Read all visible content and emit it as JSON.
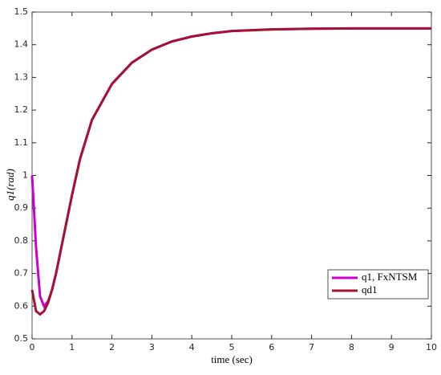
{
  "chart_data": {
    "type": "line",
    "x_label": "time (sec)",
    "y_label": "q1(rad)",
    "x": [
      0,
      0.1,
      0.2,
      0.3,
      0.4,
      0.5,
      0.6,
      0.8,
      1,
      1.2,
      1.5,
      2,
      2.5,
      3,
      3.5,
      4,
      4.5,
      5,
      6,
      7,
      8,
      9,
      10
    ],
    "series": [
      {
        "name": "q1, FxNTSM",
        "color": "#cc00cc",
        "values": [
          1.0,
          0.78,
          0.63,
          0.6,
          0.615,
          0.65,
          0.7,
          0.82,
          0.94,
          1.05,
          1.17,
          1.28,
          1.345,
          1.385,
          1.41,
          1.425,
          1.435,
          1.442,
          1.447,
          1.449,
          1.45,
          1.45,
          1.45
        ]
      },
      {
        "name": "qd1",
        "color": "#a2142f",
        "values": [
          0.65,
          0.585,
          0.575,
          0.585,
          0.61,
          0.65,
          0.7,
          0.82,
          0.94,
          1.05,
          1.17,
          1.28,
          1.345,
          1.385,
          1.41,
          1.425,
          1.435,
          1.442,
          1.447,
          1.449,
          1.45,
          1.45,
          1.45
        ]
      }
    ],
    "xlim": [
      0,
      10
    ],
    "xticks": [
      0,
      1,
      2,
      3,
      4,
      5,
      6,
      7,
      8,
      9,
      10
    ],
    "ylim": [
      0.5,
      1.5
    ],
    "yticks": [
      0.5,
      0.6,
      0.7,
      0.8,
      0.9,
      1,
      1.1,
      1.2,
      1.3,
      1.4,
      1.5
    ],
    "legend": "lower right"
  }
}
